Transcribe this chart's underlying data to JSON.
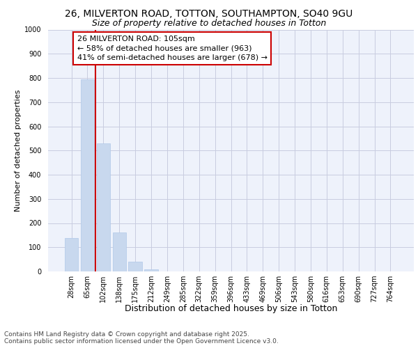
{
  "title_line1": "26, MILVERTON ROAD, TOTTON, SOUTHAMPTON, SO40 9GU",
  "title_line2": "Size of property relative to detached houses in Totton",
  "xlabel": "Distribution of detached houses by size in Totton",
  "ylabel": "Number of detached properties",
  "categories": [
    "28sqm",
    "65sqm",
    "102sqm",
    "138sqm",
    "175sqm",
    "212sqm",
    "249sqm",
    "285sqm",
    "322sqm",
    "359sqm",
    "396sqm",
    "433sqm",
    "469sqm",
    "506sqm",
    "543sqm",
    "580sqm",
    "616sqm",
    "653sqm",
    "690sqm",
    "727sqm",
    "764sqm"
  ],
  "values": [
    138,
    795,
    530,
    162,
    40,
    10,
    0,
    0,
    0,
    0,
    0,
    0,
    0,
    0,
    0,
    0,
    0,
    0,
    0,
    0,
    0
  ],
  "bar_color": "#c8d8ee",
  "bar_edge_color": "#b0c8e8",
  "vline_color": "#cc0000",
  "annotation_text_line1": "26 MILVERTON ROAD: 105sqm",
  "annotation_text_line2": "← 58% of detached houses are smaller (963)",
  "annotation_text_line3": "41% of semi-detached houses are larger (678) →",
  "box_edge_color": "#cc0000",
  "ylim": [
    0,
    1000
  ],
  "yticks": [
    0,
    100,
    200,
    300,
    400,
    500,
    600,
    700,
    800,
    900,
    1000
  ],
  "background_color": "#eef2fb",
  "grid_color": "#c8cce0",
  "footer_text": "Contains HM Land Registry data © Crown copyright and database right 2025.\nContains public sector information licensed under the Open Government Licence v3.0.",
  "title_fontsize": 10,
  "subtitle_fontsize": 9,
  "xlabel_fontsize": 9,
  "ylabel_fontsize": 8,
  "tick_fontsize": 7,
  "annotation_fontsize": 8,
  "footer_fontsize": 6.5
}
